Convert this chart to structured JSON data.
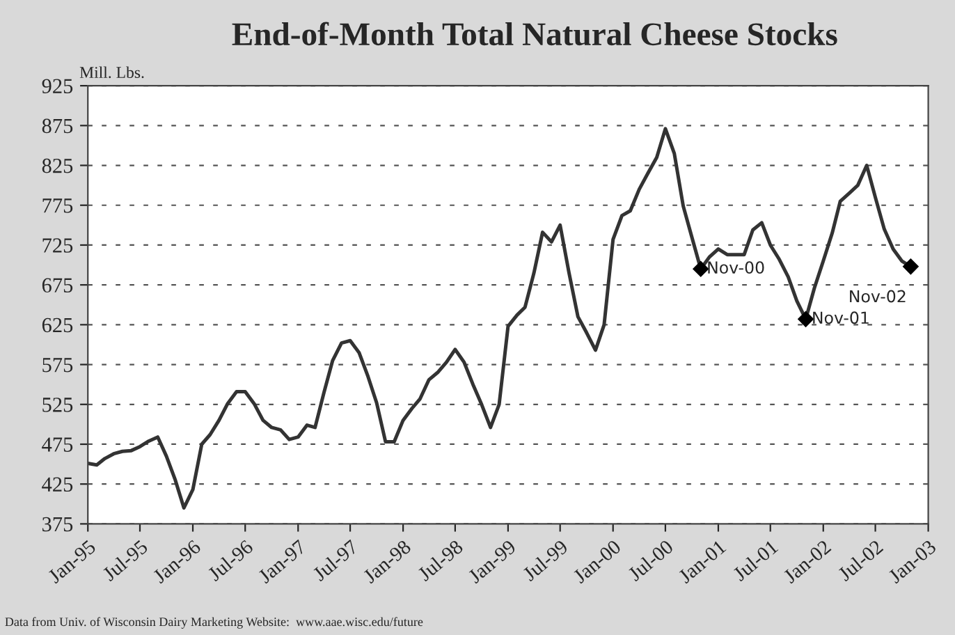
{
  "chart_data": {
    "type": "line",
    "title": "End-of-Month Total Natural Cheese Stocks",
    "ylabel": "Mill. Lbs.",
    "x": [
      "1995-01",
      "1995-02",
      "1995-03",
      "1995-04",
      "1995-05",
      "1995-06",
      "1995-07",
      "1995-08",
      "1995-09",
      "1995-10",
      "1995-11",
      "1995-12",
      "1996-01",
      "1996-02",
      "1996-03",
      "1996-04",
      "1996-05",
      "1996-06",
      "1996-07",
      "1996-08",
      "1996-09",
      "1996-10",
      "1996-11",
      "1996-12",
      "1997-01",
      "1997-02",
      "1997-03",
      "1997-04",
      "1997-05",
      "1997-06",
      "1997-07",
      "1997-08",
      "1997-09",
      "1997-10",
      "1997-11",
      "1997-12",
      "1998-01",
      "1998-02",
      "1998-03",
      "1998-04",
      "1998-05",
      "1998-06",
      "1998-07",
      "1998-08",
      "1998-09",
      "1998-10",
      "1998-11",
      "1998-12",
      "1999-01",
      "1999-02",
      "1999-03",
      "1999-04",
      "1999-05",
      "1999-06",
      "1999-07",
      "1999-08",
      "1999-09",
      "1999-10",
      "1999-11",
      "1999-12",
      "2000-01",
      "2000-02",
      "2000-03",
      "2000-04",
      "2000-05",
      "2000-06",
      "2000-07",
      "2000-08",
      "2000-09",
      "2000-10",
      "2000-11",
      "2000-12",
      "2001-01",
      "2001-02",
      "2001-03",
      "2001-04",
      "2001-05",
      "2001-06",
      "2001-07",
      "2001-08",
      "2001-09",
      "2001-10",
      "2001-11",
      "2001-12",
      "2002-01",
      "2002-02",
      "2002-03",
      "2002-04",
      "2002-05",
      "2002-06",
      "2002-07",
      "2002-08",
      "2002-09",
      "2002-10",
      "2002-11"
    ],
    "series": [
      {
        "color": "#333333",
        "values": [
          451,
          449,
          457,
          463,
          466,
          467,
          472,
          479,
          484,
          460,
          430,
          395,
          418,
          475,
          487,
          505,
          526,
          541,
          541,
          526,
          505,
          496,
          493,
          481,
          484,
          499,
          496,
          540,
          580,
          602,
          605,
          590,
          560,
          527,
          478,
          478,
          505,
          520,
          532,
          556,
          565,
          578,
          594,
          578,
          550,
          525,
          496,
          525,
          623,
          637,
          647,
          690,
          741,
          729,
          750,
          690,
          635,
          615,
          593,
          625,
          732,
          762,
          768,
          795,
          815,
          835,
          871,
          840,
          774,
          735,
          695,
          710,
          720,
          713,
          713,
          713,
          744,
          753,
          725,
          707,
          685,
          655,
          632,
          671,
          705,
          740,
          780,
          790,
          800,
          825,
          785,
          745,
          720,
          705,
          698
        ]
      }
    ],
    "xlim": [
      "1995-01",
      "2003-01"
    ],
    "xticks": [
      {
        "value": "1995-01",
        "label": "Jan-95"
      },
      {
        "value": "1995-07",
        "label": "Jul-95"
      },
      {
        "value": "1996-01",
        "label": "Jan-96"
      },
      {
        "value": "1996-07",
        "label": "Jul-96"
      },
      {
        "value": "1997-01",
        "label": "Jan-97"
      },
      {
        "value": "1997-07",
        "label": "Jul-97"
      },
      {
        "value": "1998-01",
        "label": "Jan-98"
      },
      {
        "value": "1998-07",
        "label": "Jul-98"
      },
      {
        "value": "1999-01",
        "label": "Jan-99"
      },
      {
        "value": "1999-07",
        "label": "Jul-99"
      },
      {
        "value": "2000-01",
        "label": "Jan-00"
      },
      {
        "value": "2000-07",
        "label": "Jul-00"
      },
      {
        "value": "2001-01",
        "label": "Jan-01"
      },
      {
        "value": "2001-07",
        "label": "Jul-01"
      },
      {
        "value": "2002-01",
        "label": "Jan-02"
      },
      {
        "value": "2002-07",
        "label": "Jul-02"
      },
      {
        "value": "2003-01",
        "label": "Jan-03"
      }
    ],
    "ylim": [
      375,
      925
    ],
    "yticks": [
      375,
      425,
      475,
      525,
      575,
      625,
      675,
      725,
      775,
      825,
      875,
      925
    ],
    "grid": "y",
    "marker": "none",
    "line_style": "solid",
    "legend": false,
    "annotations": [
      {
        "text": "Nov-00",
        "x": "2000-11",
        "y": 695
      },
      {
        "text": "Nov-01",
        "x": "2001-11",
        "y": 632
      },
      {
        "text": "Nov-02",
        "x": "2002-11",
        "y": 698
      },
      "Data from Univ. of Wisconsin Dairy Marketing Website:  www.aae.wisc.edu/future"
    ]
  }
}
